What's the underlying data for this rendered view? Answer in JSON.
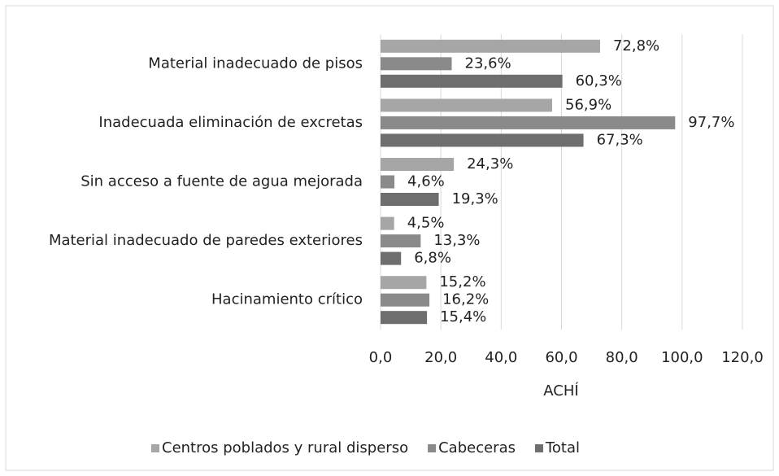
{
  "chart_data": {
    "type": "bar",
    "orientation": "horizontal",
    "xlabel": "ACHÍ",
    "categories": [
      "Material inadecuado de pisos",
      "Inadecuada eliminación de excretas",
      "Sin acceso a fuente de agua mejorada",
      "Material inadecuado de paredes exteriores",
      "Hacinamiento crítico"
    ],
    "series": [
      {
        "name": "Centros poblados y rural disperso",
        "color": "#a6a6a6",
        "values": [
          72.8,
          56.9,
          24.3,
          4.5,
          15.2
        ],
        "value_labels": [
          "72,8%",
          "56,9%",
          "24,3%",
          "4,5%",
          "15,2%"
        ]
      },
      {
        "name": "Cabeceras",
        "color": "#8a8a8a",
        "values": [
          23.6,
          97.7,
          4.6,
          13.3,
          16.2
        ],
        "value_labels": [
          "23,6%",
          "97,7%",
          "4,6%",
          "13,3%",
          "16,2%"
        ]
      },
      {
        "name": "Total",
        "color": "#6e6e6e",
        "values": [
          60.3,
          67.3,
          19.3,
          6.8,
          15.4
        ],
        "value_labels": [
          "60,3%",
          "67,3%",
          "19,3%",
          "6,8%",
          "15,4%"
        ]
      }
    ],
    "xlim": [
      0,
      120
    ],
    "xticks": [
      {
        "value": 0,
        "label": "0,0"
      },
      {
        "value": 20,
        "label": "20,0"
      },
      {
        "value": 40,
        "label": "40,0"
      },
      {
        "value": 60,
        "label": "60,0"
      },
      {
        "value": 80,
        "label": "80,0"
      },
      {
        "value": 100,
        "label": "100,0"
      },
      {
        "value": 120,
        "label": "120,0"
      }
    ],
    "grid": true,
    "legend": "bottom"
  }
}
